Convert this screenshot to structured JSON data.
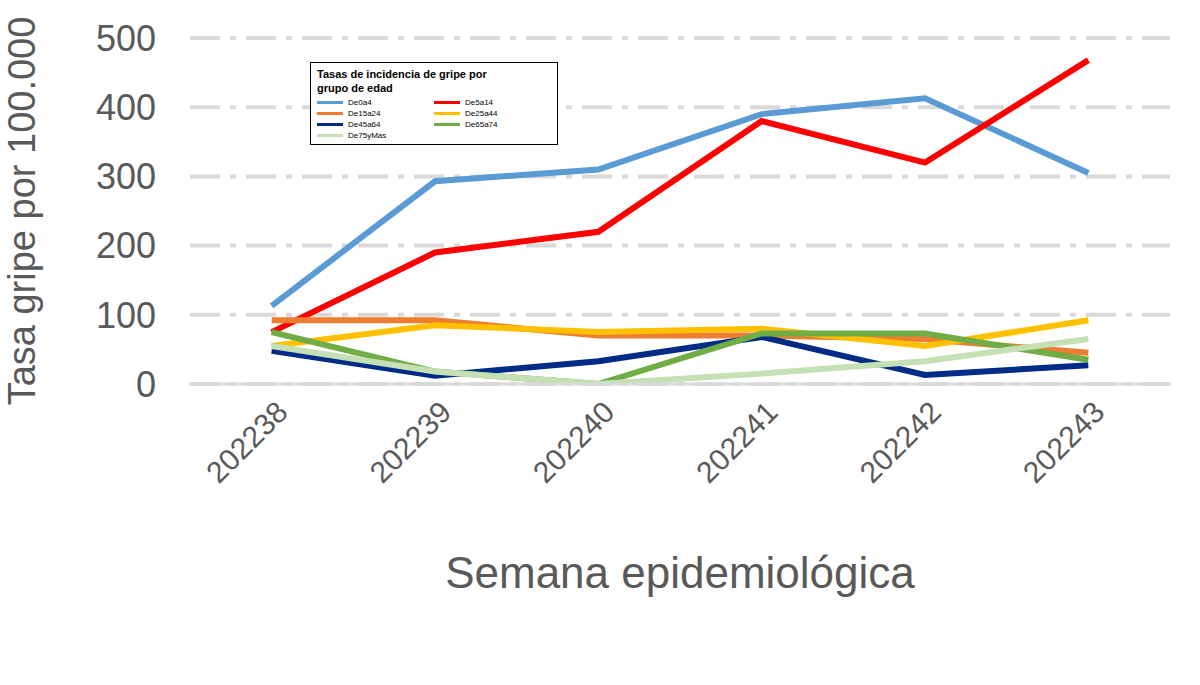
{
  "chart_data": {
    "type": "line",
    "title": "Tasas de incidencia de gripe por grupo de  edad",
    "x_label": "Semana epidemiológica",
    "y_label": "Tasa  gripe  por 100.000",
    "categories": [
      "202238",
      "202239",
      "202240",
      "202241",
      "202242",
      "202243"
    ],
    "series": [
      {
        "name": "De0a4",
        "color": "#5b9bd5",
        "values": [
          113,
          293,
          310,
          390,
          413,
          305
        ]
      },
      {
        "name": "De5a14",
        "color": "#ff0000",
        "values": [
          75,
          190,
          220,
          380,
          320,
          468
        ]
      },
      {
        "name": "De15a24",
        "color": "#ed7d31",
        "values": [
          92,
          92,
          70,
          70,
          65,
          45
        ]
      },
      {
        "name": "De25a44",
        "color": "#ffc000",
        "values": [
          55,
          85,
          75,
          80,
          55,
          92
        ]
      },
      {
        "name": "De45a64",
        "color": "#002b87",
        "values": [
          48,
          12,
          33,
          68,
          13,
          27
        ]
      },
      {
        "name": "De65a74",
        "color": "#70ad47",
        "values": [
          75,
          18,
          0,
          73,
          73,
          35
        ]
      },
      {
        "name": "De75yMas",
        "color": "#c5e0b4",
        "values": [
          55,
          18,
          0,
          15,
          33,
          65
        ]
      }
    ],
    "ylim": [
      0,
      500
    ],
    "yticks": [
      0,
      100,
      200,
      300,
      400,
      500
    ],
    "grid": true,
    "legend": "top-left"
  }
}
